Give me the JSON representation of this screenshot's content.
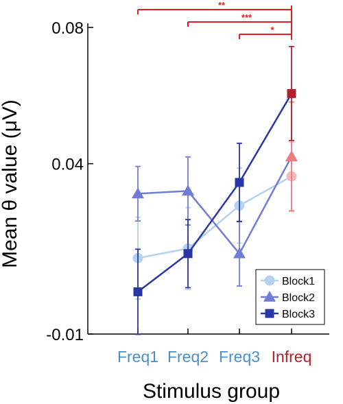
{
  "chart_data": {
    "type": "line",
    "title": "",
    "xlabel": "Stimulus group",
    "ylabel": "Mean θ value (μV)",
    "categories": [
      "Freq1",
      "Freq2",
      "Freq3",
      "Infreq"
    ],
    "category_colors": [
      "#4a90c8",
      "#4a90c8",
      "#4a90c8",
      "#b0202a"
    ],
    "yticks": [
      "-0.01",
      "0.04",
      "0.08"
    ],
    "ytick_values": [
      -0.01,
      0.04,
      0.08
    ],
    "ylim": [
      -0.01,
      0.08
    ],
    "grid": false,
    "legend_position": "bottom-right",
    "series": [
      {
        "name": "Block1",
        "marker": "circle",
        "color": "#b4d2ee",
        "last_color": "#f7b8bd",
        "values": [
          0.0123,
          0.0151,
          0.0277,
          0.0363
        ],
        "error": [
          0.012,
          0.012,
          0.011,
          0.01
        ]
      },
      {
        "name": "Block2",
        "marker": "triangle",
        "color": "#6f7dd6",
        "last_color": "#e87d7f",
        "values": [
          0.0312,
          0.032,
          0.0136,
          0.0421
        ],
        "error": [
          0.008,
          0.01,
          0.0095,
          0.016
        ]
      },
      {
        "name": "Block3",
        "marker": "square",
        "color": "#2836a6",
        "last_color": "#b3202c",
        "values": [
          0.0024,
          0.0136,
          0.0345,
          0.0606
        ],
        "error": [
          0.0125,
          0.01,
          0.0115,
          0.0138
        ]
      }
    ],
    "significance": [
      {
        "from": "Freq1",
        "to": "Infreq",
        "label": "**"
      },
      {
        "from": "Freq2",
        "to": "Infreq",
        "label": "***"
      },
      {
        "from": "Freq3",
        "to": "Infreq",
        "label": "*"
      }
    ],
    "significance_color": "#e11d24"
  }
}
